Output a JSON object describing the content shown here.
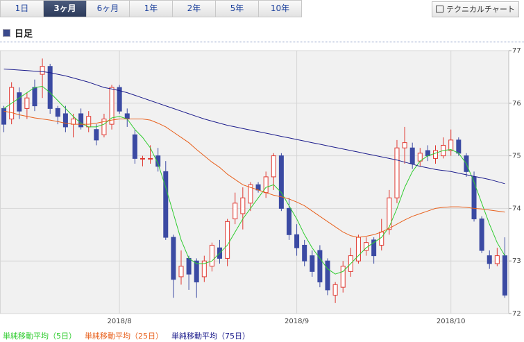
{
  "tabs": [
    "1日",
    "3ヶ月",
    "6ヶ月",
    "1年",
    "2年",
    "5年",
    "10年"
  ],
  "selected_tab": 1,
  "button": "テクニカルチャート",
  "section_title": "日足",
  "chart_data": {
    "type": "candlestick",
    "categories": [
      null,
      null,
      null,
      null,
      null,
      null,
      null,
      null,
      null,
      null,
      null,
      null,
      null,
      null,
      null,
      "2018/8",
      null,
      null,
      null,
      null,
      null,
      null,
      null,
      null,
      null,
      null,
      null,
      null,
      null,
      null,
      null,
      null,
      null,
      null,
      null,
      null,
      null,
      null,
      "2018/9",
      null,
      null,
      null,
      null,
      null,
      null,
      null,
      null,
      null,
      null,
      null,
      null,
      null,
      null,
      null,
      null,
      null,
      null,
      null,
      "2018/10",
      null,
      null,
      null,
      null,
      null,
      null,
      null
    ],
    "open": [
      75.9,
      75.7,
      76.2,
      75.9,
      76.3,
      76.55,
      76.7,
      75.9,
      75.8,
      75.6,
      75.8,
      75.55,
      75.5,
      75.4,
      75.6,
      76.3,
      75.8,
      75.4,
      74.95,
      74.95,
      75.0,
      74.7,
      73.45,
      72.7,
      73.05,
      73.0,
      72.7,
      72.9,
      73.25,
      73.05,
      73.8,
      73.9,
      74.1,
      74.45,
      74.3,
      74.6,
      75.0,
      74.0,
      73.5,
      73.3,
      73.1,
      73.2,
      73.0,
      72.35,
      72.5,
      72.8,
      73.0,
      73.2,
      73.4,
      73.3,
      73.6,
      74.2,
      75.15,
      75.15,
      74.9,
      75.1,
      74.95,
      75.0,
      75.1,
      75.3,
      75.0,
      74.6,
      73.8,
      73.1,
      72.95,
      73.1
    ],
    "high": [
      75.95,
      76.4,
      76.3,
      76.2,
      76.45,
      76.85,
      76.75,
      75.95,
      75.95,
      75.8,
      75.9,
      75.85,
      75.6,
      75.8,
      76.35,
      76.35,
      75.9,
      75.5,
      75.0,
      75.2,
      75.15,
      74.9,
      73.5,
      73.2,
      73.1,
      73.05,
      73.1,
      73.35,
      73.4,
      73.8,
      74.3,
      74.4,
      74.5,
      74.5,
      74.7,
      75.05,
      75.05,
      74.2,
      73.7,
      73.4,
      73.2,
      73.3,
      73.05,
      72.6,
      73.0,
      73.25,
      73.5,
      73.45,
      73.45,
      73.8,
      74.35,
      75.3,
      75.55,
      75.25,
      75.15,
      75.2,
      75.2,
      75.35,
      75.5,
      75.35,
      75.05,
      74.7,
      73.85,
      73.2,
      73.25,
      73.45
    ],
    "low": [
      75.45,
      75.6,
      75.7,
      75.7,
      75.85,
      76.1,
      75.8,
      75.6,
      75.45,
      75.35,
      75.5,
      75.45,
      75.2,
      75.35,
      75.5,
      75.8,
      75.55,
      74.85,
      74.8,
      74.85,
      74.7,
      73.4,
      72.3,
      72.55,
      72.45,
      72.3,
      72.6,
      72.8,
      72.95,
      72.9,
      73.7,
      73.6,
      73.95,
      74.3,
      74.2,
      74.35,
      73.95,
      73.4,
      73.1,
      72.9,
      72.7,
      72.5,
      72.35,
      72.2,
      72.4,
      72.7,
      72.95,
      73.1,
      72.95,
      73.2,
      73.5,
      74.1,
      74.85,
      74.75,
      74.8,
      74.9,
      74.85,
      74.95,
      75.0,
      75.0,
      74.6,
      73.75,
      73.15,
      72.85,
      72.9,
      72.3
    ],
    "close": [
      75.6,
      76.3,
      75.85,
      76.1,
      75.95,
      76.7,
      75.9,
      75.75,
      75.55,
      75.7,
      75.55,
      75.75,
      75.3,
      75.7,
      76.3,
      75.85,
      75.7,
      74.95,
      74.95,
      74.95,
      74.8,
      73.45,
      72.65,
      72.9,
      72.75,
      72.6,
      73.0,
      73.3,
      73.05,
      73.75,
      74.1,
      74.2,
      74.45,
      74.35,
      74.6,
      75.0,
      74.0,
      73.5,
      73.25,
      73.0,
      72.8,
      72.6,
      72.45,
      72.55,
      72.9,
      73.1,
      73.45,
      73.35,
      73.1,
      73.55,
      74.2,
      75.15,
      75.25,
      74.85,
      75.05,
      75.0,
      75.1,
      75.2,
      75.3,
      75.05,
      74.7,
      73.8,
      73.2,
      72.95,
      73.1,
      72.35
    ],
    "up_color": "#e0372f",
    "down_color": "#3b4aa3",
    "series": [
      {
        "name": "単純移動平均（5日）",
        "color": "#2fcc2f",
        "values": [
          75.9,
          76.0,
          76.1,
          76.2,
          76.3,
          76.32,
          76.2,
          76.05,
          75.9,
          75.75,
          75.62,
          75.55,
          75.55,
          75.6,
          75.72,
          75.75,
          75.7,
          75.5,
          75.35,
          75.15,
          74.85,
          74.4,
          73.9,
          73.4,
          73.05,
          72.95,
          72.95,
          73.0,
          73.15,
          73.3,
          73.55,
          73.8,
          74.0,
          74.2,
          74.4,
          74.45,
          74.3,
          74.05,
          73.8,
          73.5,
          73.25,
          73.05,
          72.85,
          72.75,
          72.8,
          72.95,
          73.1,
          73.25,
          73.35,
          73.45,
          73.65,
          74.0,
          74.4,
          74.7,
          74.9,
          75.0,
          75.05,
          75.1,
          75.12,
          75.05,
          74.85,
          74.5,
          74.1,
          73.7,
          73.35,
          73.1
        ]
      },
      {
        "name": "単純移動平均（25日）",
        "color": "#e8601c",
        "values": [
          75.85,
          75.82,
          75.78,
          75.75,
          75.72,
          75.7,
          75.68,
          75.65,
          75.62,
          75.6,
          75.6,
          75.6,
          75.62,
          75.65,
          75.68,
          75.7,
          75.7,
          75.7,
          75.7,
          75.68,
          75.62,
          75.55,
          75.45,
          75.35,
          75.25,
          75.12,
          75.0,
          74.88,
          74.78,
          74.65,
          74.55,
          74.45,
          74.4,
          74.35,
          74.3,
          74.25,
          74.22,
          74.18,
          74.12,
          74.05,
          73.95,
          73.85,
          73.75,
          73.65,
          73.55,
          73.48,
          73.45,
          73.47,
          73.5,
          73.55,
          73.62,
          73.7,
          73.78,
          73.85,
          73.9,
          73.95,
          74.0,
          74.02,
          74.03,
          74.03,
          74.02,
          74.0,
          73.99,
          73.97,
          73.95,
          73.93
        ]
      },
      {
        "name": "単純移動平均（75日）",
        "color": "#1c1c8c",
        "values": [
          76.65,
          76.64,
          76.63,
          76.62,
          76.61,
          76.6,
          76.58,
          76.55,
          76.52,
          76.48,
          76.44,
          76.4,
          76.35,
          76.3,
          76.27,
          76.24,
          76.2,
          76.15,
          76.1,
          76.05,
          76.0,
          75.95,
          75.9,
          75.85,
          75.8,
          75.75,
          75.7,
          75.66,
          75.62,
          75.58,
          75.55,
          75.52,
          75.49,
          75.46,
          75.43,
          75.4,
          75.37,
          75.34,
          75.31,
          75.28,
          75.25,
          75.22,
          75.19,
          75.16,
          75.13,
          75.1,
          75.07,
          75.04,
          75.01,
          74.98,
          74.95,
          74.92,
          74.88,
          74.84,
          74.8,
          74.77,
          74.74,
          74.72,
          74.7,
          74.67,
          74.64,
          74.61,
          74.58,
          74.55,
          74.51,
          74.47
        ]
      }
    ],
    "ylim": [
      72,
      77
    ],
    "yticks": [
      72,
      73,
      74,
      75,
      76,
      77
    ],
    "grid": true
  }
}
